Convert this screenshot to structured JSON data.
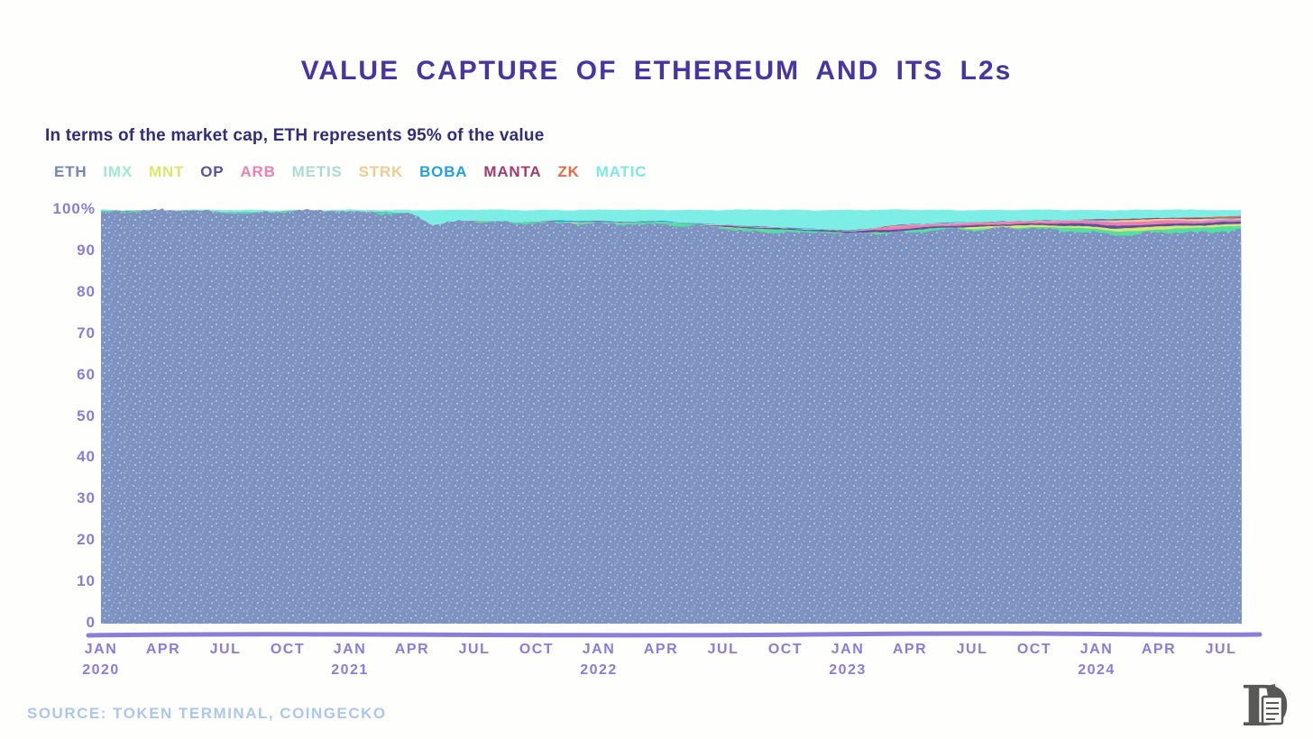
{
  "header": {
    "title": "VALUE CAPTURE OF ETHEREUM AND ITS L2s"
  },
  "subtitle": "In terms of the market cap, ETH represents 95% of the value",
  "source": "SOURCE: TOKEN TERMINAL, COINGECKO",
  "colors": {
    "title": "#4934a3",
    "subtitle": "#322c7d",
    "axis_label": "#8a7cd8",
    "axis_line": "#8c7ed6",
    "source": "#abc7ed",
    "background": "#fefefc"
  },
  "legend": {
    "items": [
      {
        "label": "ETH",
        "color": "#7289b8"
      },
      {
        "label": "IMX",
        "color": "#9bead2"
      },
      {
        "label": "MNT",
        "color": "#d9e76a"
      },
      {
        "label": "OP",
        "color": "#5a51a5"
      },
      {
        "label": "ARB",
        "color": "#f07fb0"
      },
      {
        "label": "METIS",
        "color": "#abdcd3"
      },
      {
        "label": "STRK",
        "color": "#f0cb90"
      },
      {
        "label": "BOBA",
        "color": "#21a0e4"
      },
      {
        "label": "MANTA",
        "color": "#a83a6b"
      },
      {
        "label": "ZK",
        "color": "#e86a4b"
      },
      {
        "label": "MATIC",
        "color": "#7de9df"
      }
    ]
  },
  "chart_data": {
    "type": "area",
    "stacked": true,
    "unit": "percent share of combined market cap",
    "interval": "monthly",
    "x_start": "2020-01",
    "x_end": "2024-08",
    "ylim": [
      0,
      100
    ],
    "grid": false,
    "legend_position": "top-left",
    "y_ticks": [
      {
        "v": 100,
        "label": "100%"
      },
      {
        "v": 90,
        "label": "90"
      },
      {
        "v": 80,
        "label": "80"
      },
      {
        "v": 70,
        "label": "70"
      },
      {
        "v": 60,
        "label": "60"
      },
      {
        "v": 50,
        "label": "50"
      },
      {
        "v": 40,
        "label": "40"
      },
      {
        "v": 30,
        "label": "30"
      },
      {
        "v": 20,
        "label": "20"
      },
      {
        "v": 10,
        "label": "10"
      },
      {
        "v": 0,
        "label": "0"
      }
    ],
    "x_ticks": [
      {
        "i": 0,
        "month": "JAN",
        "year": "2020"
      },
      {
        "i": 3,
        "month": "APR"
      },
      {
        "i": 6,
        "month": "JUL"
      },
      {
        "i": 9,
        "month": "OCT"
      },
      {
        "i": 12,
        "month": "JAN",
        "year": "2021"
      },
      {
        "i": 15,
        "month": "APR"
      },
      {
        "i": 18,
        "month": "JUL"
      },
      {
        "i": 21,
        "month": "OCT"
      },
      {
        "i": 24,
        "month": "JAN",
        "year": "2022"
      },
      {
        "i": 27,
        "month": "APR"
      },
      {
        "i": 30,
        "month": "JUL"
      },
      {
        "i": 33,
        "month": "OCT"
      },
      {
        "i": 36,
        "month": "JAN",
        "year": "2023"
      },
      {
        "i": 39,
        "month": "APR"
      },
      {
        "i": 42,
        "month": "JUL"
      },
      {
        "i": 45,
        "month": "OCT"
      },
      {
        "i": 48,
        "month": "JAN",
        "year": "2024"
      },
      {
        "i": 51,
        "month": "APR"
      },
      {
        "i": 54,
        "month": "JUL"
      }
    ],
    "series": [
      {
        "name": "ETH",
        "color": "#7d93c2",
        "values": [
          99.7,
          99.7,
          99.8,
          99.7,
          99.7,
          99.6,
          99.4,
          99.3,
          99.4,
          99.6,
          99.6,
          99.6,
          99.6,
          99.5,
          99.3,
          99.0,
          96.2,
          96.8,
          97.4,
          97.1,
          96.9,
          97.1,
          96.7,
          96.5,
          96.5,
          96.5,
          96.6,
          96.6,
          96.4,
          96.1,
          95.6,
          94.6,
          94.6,
          94.9,
          94.7,
          94.6,
          94.0,
          94.2,
          94.1,
          94.8,
          95.2,
          95.45,
          95.05,
          95.25,
          95.45,
          95.55,
          95.25,
          95.05,
          94.55,
          93.95,
          93.95,
          94.45,
          94.65,
          94.75,
          95.05,
          95.15
        ]
      },
      {
        "name": "IMX",
        "color": "#52dfa2",
        "values": [
          0,
          0,
          0,
          0,
          0,
          0,
          0,
          0,
          0,
          0,
          0,
          0,
          0,
          0,
          0,
          0,
          0,
          0,
          0,
          0,
          0,
          0,
          0.3,
          0.4,
          0.4,
          0.3,
          0.3,
          0.4,
          0.3,
          0.2,
          0.3,
          0.9,
          0.8,
          0.3,
          0.2,
          0.2,
          0.3,
          0.4,
          0.4,
          0.3,
          0.3,
          0.3,
          0.3,
          0.3,
          0.3,
          0.3,
          0.5,
          0.6,
          0.8,
          0.9,
          1.0,
          0.9,
          0.9,
          0.9,
          0.9,
          0.9
        ]
      },
      {
        "name": "MNT",
        "color": "#d9e76a",
        "values": [
          0,
          0,
          0,
          0,
          0,
          0,
          0,
          0,
          0,
          0,
          0,
          0,
          0,
          0,
          0,
          0,
          0,
          0,
          0,
          0,
          0,
          0,
          0,
          0,
          0,
          0,
          0,
          0,
          0,
          0,
          0,
          0,
          0,
          0,
          0,
          0,
          0,
          0,
          0,
          0,
          0,
          0,
          0.5,
          0.5,
          0.5,
          0.5,
          0.5,
          0.5,
          0.6,
          0.6,
          0.7,
          0.7,
          0.6,
          0.6,
          0.6,
          0.6
        ]
      },
      {
        "name": "OP",
        "color": "#5a51a5",
        "values": [
          0,
          0,
          0,
          0,
          0,
          0,
          0,
          0,
          0,
          0,
          0,
          0,
          0,
          0,
          0,
          0,
          0,
          0,
          0,
          0,
          0,
          0,
          0,
          0,
          0,
          0,
          0,
          0,
          0,
          0.1,
          0.3,
          0.4,
          0.3,
          0.3,
          0.3,
          0.3,
          0.5,
          0.6,
          0.6,
          0.5,
          0.4,
          0.4,
          0.4,
          0.4,
          0.4,
          0.4,
          0.5,
          0.6,
          0.6,
          0.7,
          0.7,
          0.6,
          0.6,
          0.5,
          0.5,
          0.5
        ]
      },
      {
        "name": "ARB",
        "color": "#f07fb0",
        "values": [
          0,
          0,
          0,
          0,
          0,
          0,
          0,
          0,
          0,
          0,
          0,
          0,
          0,
          0,
          0,
          0,
          0,
          0,
          0,
          0,
          0,
          0,
          0,
          0,
          0,
          0,
          0,
          0,
          0,
          0,
          0,
          0,
          0,
          0,
          0,
          0,
          0,
          0,
          0.8,
          0.7,
          0.6,
          0.6,
          0.6,
          0.5,
          0.5,
          0.5,
          0.6,
          0.7,
          0.8,
          0.8,
          0.8,
          0.7,
          0.7,
          0.6,
          0.6,
          0.6
        ]
      },
      {
        "name": "METIS",
        "color": "#abdcd3",
        "values": [
          0,
          0,
          0,
          0,
          0,
          0,
          0,
          0,
          0,
          0,
          0,
          0,
          0,
          0,
          0,
          0,
          0,
          0,
          0,
          0,
          0,
          0,
          0.1,
          0.1,
          0.1,
          0.1,
          0.1,
          0.1,
          0.1,
          0.1,
          0.1,
          0.1,
          0.1,
          0.1,
          0.1,
          0.1,
          0.1,
          0.1,
          0.1,
          0.1,
          0.1,
          0.1,
          0.1,
          0.1,
          0.1,
          0.1,
          0.1,
          0.1,
          0.1,
          0.1,
          0.1,
          0.1,
          0.1,
          0.1,
          0.1,
          0.1
        ]
      },
      {
        "name": "STRK",
        "color": "#f0cb90",
        "values": [
          0,
          0,
          0,
          0,
          0,
          0,
          0,
          0,
          0,
          0,
          0,
          0,
          0,
          0,
          0,
          0,
          0,
          0,
          0,
          0,
          0,
          0,
          0,
          0,
          0,
          0,
          0,
          0,
          0,
          0,
          0,
          0,
          0,
          0,
          0,
          0,
          0,
          0,
          0,
          0,
          0,
          0,
          0,
          0,
          0,
          0,
          0,
          0,
          0,
          0.4,
          0.4,
          0.3,
          0.3,
          0.3,
          0.2,
          0.2
        ]
      },
      {
        "name": "BOBA",
        "color": "#21a0e4",
        "values": [
          0,
          0,
          0,
          0,
          0,
          0,
          0,
          0,
          0,
          0,
          0,
          0,
          0,
          0,
          0,
          0,
          0,
          0,
          0,
          0,
          0,
          0,
          0.3,
          0.3,
          0.3,
          0.2,
          0.2,
          0.2,
          0.1,
          0.1,
          0.1,
          0.1,
          0.1,
          0.1,
          0.1,
          0.1,
          0.1,
          0.1,
          0.1,
          0.1,
          0.1,
          0.05,
          0.05,
          0.05,
          0.05,
          0.05,
          0.05,
          0.05,
          0.05,
          0.05,
          0.05,
          0.05,
          0.05,
          0.05,
          0.05,
          0.05
        ]
      },
      {
        "name": "MANTA",
        "color": "#a83a6b",
        "values": [
          0,
          0,
          0,
          0,
          0,
          0,
          0,
          0,
          0,
          0,
          0,
          0,
          0,
          0,
          0,
          0,
          0,
          0,
          0,
          0,
          0,
          0,
          0,
          0,
          0,
          0,
          0,
          0,
          0,
          0,
          0,
          0,
          0,
          0,
          0,
          0,
          0,
          0,
          0,
          0,
          0,
          0,
          0,
          0,
          0,
          0,
          0,
          0,
          0.2,
          0.3,
          0.2,
          0.2,
          0.2,
          0.2,
          0.1,
          0.1
        ]
      },
      {
        "name": "ZK",
        "color": "#e86a4b",
        "values": [
          0,
          0,
          0,
          0,
          0,
          0,
          0,
          0,
          0,
          0,
          0,
          0,
          0,
          0,
          0,
          0,
          0,
          0,
          0,
          0,
          0,
          0,
          0,
          0,
          0,
          0,
          0,
          0,
          0,
          0,
          0,
          0,
          0,
          0,
          0,
          0,
          0,
          0,
          0,
          0,
          0,
          0,
          0,
          0,
          0,
          0,
          0,
          0,
          0,
          0,
          0,
          0,
          0,
          0.2,
          0.3,
          0.3
        ]
      },
      {
        "name": "MATIC",
        "color": "#7ceee6",
        "values": [
          0.3,
          0.3,
          0.2,
          0.3,
          0.3,
          0.4,
          0.6,
          0.7,
          0.6,
          0.4,
          0.4,
          0.4,
          0.4,
          0.5,
          0.7,
          1.0,
          3.8,
          3.2,
          2.6,
          2.9,
          3.1,
          2.9,
          2.6,
          2.7,
          2.7,
          2.9,
          2.8,
          2.7,
          3.1,
          3.4,
          3.6,
          3.9,
          4.1,
          4.3,
          4.6,
          4.7,
          5.0,
          4.6,
          3.9,
          3.5,
          3.3,
          3.1,
          3.0,
          2.9,
          2.7,
          2.6,
          2.5,
          2.4,
          2.3,
          2.2,
          2.1,
          2.0,
          1.9,
          1.8,
          1.6,
          1.5
        ]
      }
    ]
  }
}
